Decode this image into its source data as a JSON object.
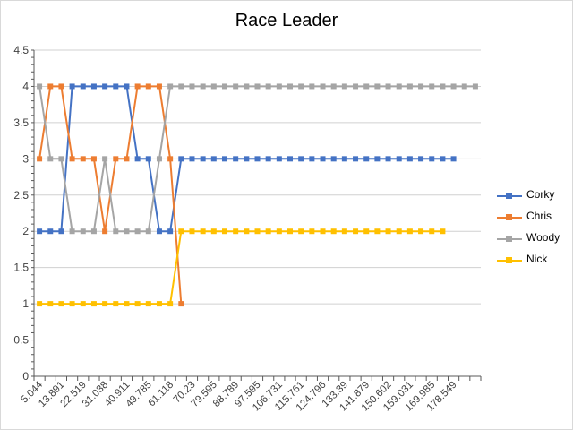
{
  "chart_data": {
    "type": "line",
    "title": "Race Leader",
    "xlabel": "",
    "ylabel": "",
    "ylim": [
      0,
      4.5
    ],
    "y_ticks": [
      "0",
      "0.5",
      "1",
      "1.5",
      "2",
      "2.5",
      "3",
      "3.5",
      "4",
      "4.5"
    ],
    "x_tick_labels": [
      "5.044",
      "13.891",
      "22.519",
      "31.038",
      "40.911",
      "49.785",
      "61.118",
      "70.23",
      "79.595",
      "88.789",
      "97.595",
      "106.731",
      "115.761",
      "124.796",
      "133.39",
      "141.879",
      "150.602",
      "159.031",
      "169.985",
      "178.549"
    ],
    "x_categories_count": 41,
    "grid": true,
    "legend_position": "right",
    "series": [
      {
        "name": "Corky",
        "color": "#4472C4",
        "values": [
          2,
          2,
          2,
          4,
          4,
          4,
          4,
          4,
          4,
          3,
          3,
          2,
          2,
          3,
          3,
          3,
          3,
          3,
          3,
          3,
          3,
          3,
          3,
          3,
          3,
          3,
          3,
          3,
          3,
          3,
          3,
          3,
          3,
          3,
          3,
          3,
          3,
          3,
          3
        ]
      },
      {
        "name": "Chris",
        "color": "#ED7D31",
        "values": [
          3,
          4,
          4,
          3,
          3,
          3,
          2,
          3,
          3,
          4,
          4,
          4,
          3,
          1
        ]
      },
      {
        "name": "Woody",
        "color": "#A5A5A5",
        "values": [
          4,
          3,
          3,
          2,
          2,
          2,
          3,
          2,
          2,
          2,
          2,
          3,
          4,
          4,
          4,
          4,
          4,
          4,
          4,
          4,
          4,
          4,
          4,
          4,
          4,
          4,
          4,
          4,
          4,
          4,
          4,
          4,
          4,
          4,
          4,
          4,
          4,
          4,
          4,
          4,
          4
        ]
      },
      {
        "name": "Nick",
        "color": "#FFC000",
        "values": [
          1,
          1,
          1,
          1,
          1,
          1,
          1,
          1,
          1,
          1,
          1,
          1,
          1,
          2,
          2,
          2,
          2,
          2,
          2,
          2,
          2,
          2,
          2,
          2,
          2,
          2,
          2,
          2,
          2,
          2,
          2,
          2,
          2,
          2,
          2,
          2,
          2,
          2
        ]
      }
    ]
  }
}
